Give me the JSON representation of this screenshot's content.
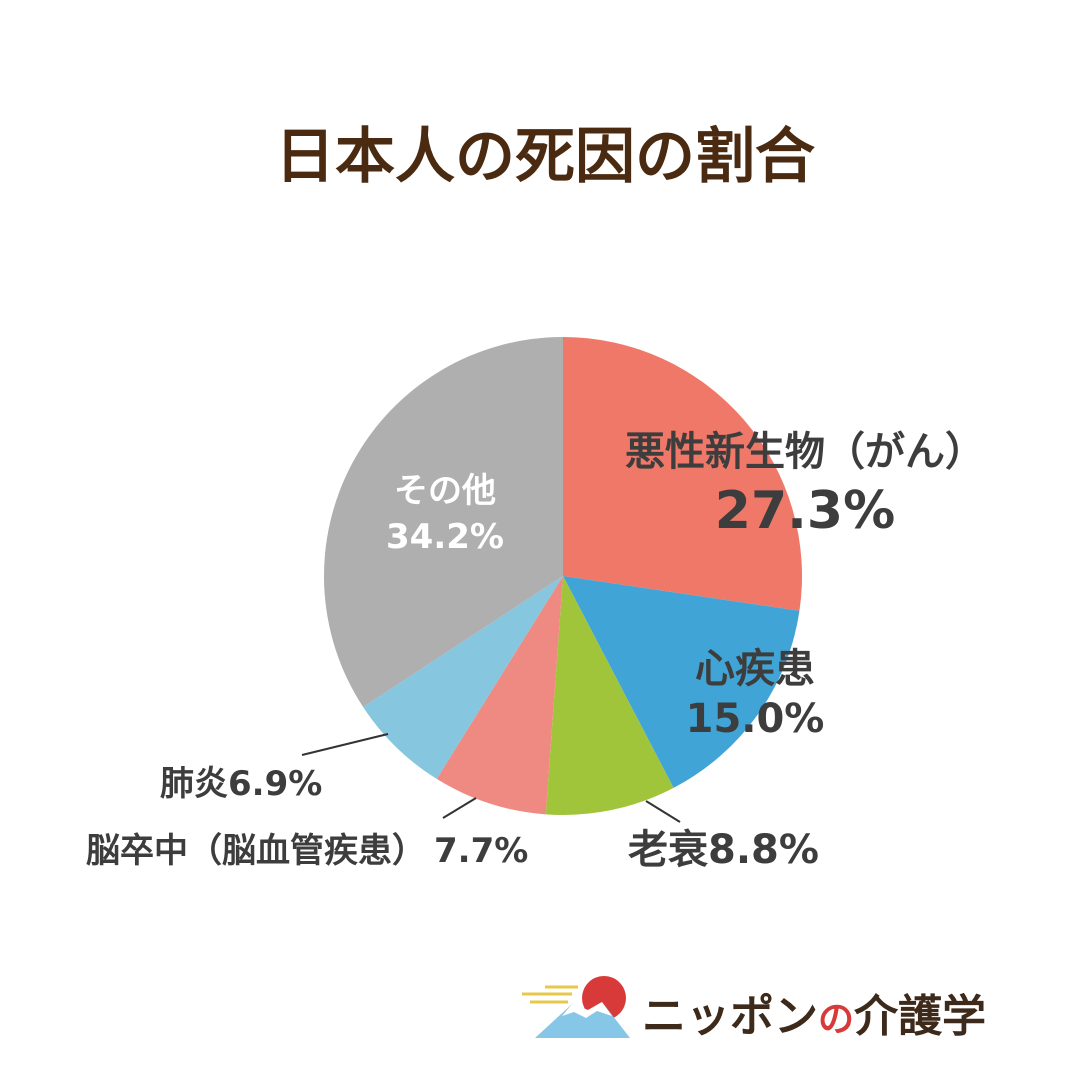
{
  "chart_data": {
    "type": "pie",
    "title": "日本人の死因の割合",
    "slices": [
      {
        "label": "悪性新生物（がん）",
        "value": 27.3,
        "value_text": "27.3%",
        "color": "#f07869"
      },
      {
        "label": "心疾患",
        "value": 15.0,
        "value_text": "15.0%",
        "color": "#40a4d6"
      },
      {
        "label": "老衰",
        "value": 8.8,
        "value_text": "8.8%",
        "color": "#a0c53a"
      },
      {
        "label": "脳卒中（脳血管疾患）",
        "value": 7.7,
        "value_text": "7.7%",
        "color": "#ee8a82"
      },
      {
        "label": "肺炎",
        "value": 6.9,
        "value_text": "6.9%",
        "color": "#86c6de"
      },
      {
        "label": "その他",
        "value": 34.2,
        "value_text": "34.2%",
        "color": "#afafaf"
      }
    ],
    "start_angle": "12 o'clock",
    "direction": "clockwise",
    "legend": "none"
  },
  "brand": {
    "name_part1": "ニッポン",
    "name_connector": "の",
    "name_part2": "介護学",
    "colors": {
      "sun": "#d83a3a",
      "mountain": "#86c6e6",
      "cloud": "#e8c84a",
      "text": "#3d2a1a",
      "connector": "#d83a3a"
    }
  }
}
